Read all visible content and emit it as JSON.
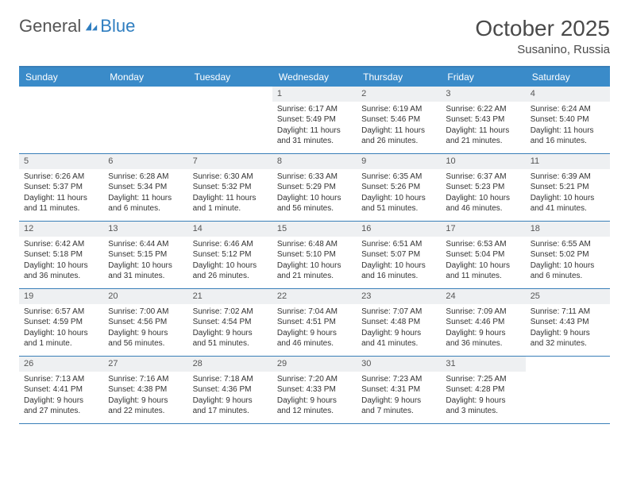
{
  "brand": {
    "word1": "General",
    "word2": "Blue",
    "color1": "#555555",
    "color2": "#2f7ec0",
    "mark_color": "#2f7ec0"
  },
  "title": "October 2025",
  "location": "Susanino, Russia",
  "palette": {
    "header_bg": "#3a8bc9",
    "header_text": "#ffffff",
    "rule": "#3a7fb8",
    "daynum_bg": "#eef0f2",
    "text": "#333333",
    "page_bg": "#ffffff"
  },
  "weekdays": [
    "Sunday",
    "Monday",
    "Tuesday",
    "Wednesday",
    "Thursday",
    "Friday",
    "Saturday"
  ],
  "weeks": [
    [
      {
        "empty": true
      },
      {
        "empty": true
      },
      {
        "empty": true
      },
      {
        "n": "1",
        "sunrise": "Sunrise: 6:17 AM",
        "sunset": "Sunset: 5:49 PM",
        "dl1": "Daylight: 11 hours",
        "dl2": "and 31 minutes."
      },
      {
        "n": "2",
        "sunrise": "Sunrise: 6:19 AM",
        "sunset": "Sunset: 5:46 PM",
        "dl1": "Daylight: 11 hours",
        "dl2": "and 26 minutes."
      },
      {
        "n": "3",
        "sunrise": "Sunrise: 6:22 AM",
        "sunset": "Sunset: 5:43 PM",
        "dl1": "Daylight: 11 hours",
        "dl2": "and 21 minutes."
      },
      {
        "n": "4",
        "sunrise": "Sunrise: 6:24 AM",
        "sunset": "Sunset: 5:40 PM",
        "dl1": "Daylight: 11 hours",
        "dl2": "and 16 minutes."
      }
    ],
    [
      {
        "n": "5",
        "sunrise": "Sunrise: 6:26 AM",
        "sunset": "Sunset: 5:37 PM",
        "dl1": "Daylight: 11 hours",
        "dl2": "and 11 minutes."
      },
      {
        "n": "6",
        "sunrise": "Sunrise: 6:28 AM",
        "sunset": "Sunset: 5:34 PM",
        "dl1": "Daylight: 11 hours",
        "dl2": "and 6 minutes."
      },
      {
        "n": "7",
        "sunrise": "Sunrise: 6:30 AM",
        "sunset": "Sunset: 5:32 PM",
        "dl1": "Daylight: 11 hours",
        "dl2": "and 1 minute."
      },
      {
        "n": "8",
        "sunrise": "Sunrise: 6:33 AM",
        "sunset": "Sunset: 5:29 PM",
        "dl1": "Daylight: 10 hours",
        "dl2": "and 56 minutes."
      },
      {
        "n": "9",
        "sunrise": "Sunrise: 6:35 AM",
        "sunset": "Sunset: 5:26 PM",
        "dl1": "Daylight: 10 hours",
        "dl2": "and 51 minutes."
      },
      {
        "n": "10",
        "sunrise": "Sunrise: 6:37 AM",
        "sunset": "Sunset: 5:23 PM",
        "dl1": "Daylight: 10 hours",
        "dl2": "and 46 minutes."
      },
      {
        "n": "11",
        "sunrise": "Sunrise: 6:39 AM",
        "sunset": "Sunset: 5:21 PM",
        "dl1": "Daylight: 10 hours",
        "dl2": "and 41 minutes."
      }
    ],
    [
      {
        "n": "12",
        "sunrise": "Sunrise: 6:42 AM",
        "sunset": "Sunset: 5:18 PM",
        "dl1": "Daylight: 10 hours",
        "dl2": "and 36 minutes."
      },
      {
        "n": "13",
        "sunrise": "Sunrise: 6:44 AM",
        "sunset": "Sunset: 5:15 PM",
        "dl1": "Daylight: 10 hours",
        "dl2": "and 31 minutes."
      },
      {
        "n": "14",
        "sunrise": "Sunrise: 6:46 AM",
        "sunset": "Sunset: 5:12 PM",
        "dl1": "Daylight: 10 hours",
        "dl2": "and 26 minutes."
      },
      {
        "n": "15",
        "sunrise": "Sunrise: 6:48 AM",
        "sunset": "Sunset: 5:10 PM",
        "dl1": "Daylight: 10 hours",
        "dl2": "and 21 minutes."
      },
      {
        "n": "16",
        "sunrise": "Sunrise: 6:51 AM",
        "sunset": "Sunset: 5:07 PM",
        "dl1": "Daylight: 10 hours",
        "dl2": "and 16 minutes."
      },
      {
        "n": "17",
        "sunrise": "Sunrise: 6:53 AM",
        "sunset": "Sunset: 5:04 PM",
        "dl1": "Daylight: 10 hours",
        "dl2": "and 11 minutes."
      },
      {
        "n": "18",
        "sunrise": "Sunrise: 6:55 AM",
        "sunset": "Sunset: 5:02 PM",
        "dl1": "Daylight: 10 hours",
        "dl2": "and 6 minutes."
      }
    ],
    [
      {
        "n": "19",
        "sunrise": "Sunrise: 6:57 AM",
        "sunset": "Sunset: 4:59 PM",
        "dl1": "Daylight: 10 hours",
        "dl2": "and 1 minute."
      },
      {
        "n": "20",
        "sunrise": "Sunrise: 7:00 AM",
        "sunset": "Sunset: 4:56 PM",
        "dl1": "Daylight: 9 hours",
        "dl2": "and 56 minutes."
      },
      {
        "n": "21",
        "sunrise": "Sunrise: 7:02 AM",
        "sunset": "Sunset: 4:54 PM",
        "dl1": "Daylight: 9 hours",
        "dl2": "and 51 minutes."
      },
      {
        "n": "22",
        "sunrise": "Sunrise: 7:04 AM",
        "sunset": "Sunset: 4:51 PM",
        "dl1": "Daylight: 9 hours",
        "dl2": "and 46 minutes."
      },
      {
        "n": "23",
        "sunrise": "Sunrise: 7:07 AM",
        "sunset": "Sunset: 4:48 PM",
        "dl1": "Daylight: 9 hours",
        "dl2": "and 41 minutes."
      },
      {
        "n": "24",
        "sunrise": "Sunrise: 7:09 AM",
        "sunset": "Sunset: 4:46 PM",
        "dl1": "Daylight: 9 hours",
        "dl2": "and 36 minutes."
      },
      {
        "n": "25",
        "sunrise": "Sunrise: 7:11 AM",
        "sunset": "Sunset: 4:43 PM",
        "dl1": "Daylight: 9 hours",
        "dl2": "and 32 minutes."
      }
    ],
    [
      {
        "n": "26",
        "sunrise": "Sunrise: 7:13 AM",
        "sunset": "Sunset: 4:41 PM",
        "dl1": "Daylight: 9 hours",
        "dl2": "and 27 minutes."
      },
      {
        "n": "27",
        "sunrise": "Sunrise: 7:16 AM",
        "sunset": "Sunset: 4:38 PM",
        "dl1": "Daylight: 9 hours",
        "dl2": "and 22 minutes."
      },
      {
        "n": "28",
        "sunrise": "Sunrise: 7:18 AM",
        "sunset": "Sunset: 4:36 PM",
        "dl1": "Daylight: 9 hours",
        "dl2": "and 17 minutes."
      },
      {
        "n": "29",
        "sunrise": "Sunrise: 7:20 AM",
        "sunset": "Sunset: 4:33 PM",
        "dl1": "Daylight: 9 hours",
        "dl2": "and 12 minutes."
      },
      {
        "n": "30",
        "sunrise": "Sunrise: 7:23 AM",
        "sunset": "Sunset: 4:31 PM",
        "dl1": "Daylight: 9 hours",
        "dl2": "and 7 minutes."
      },
      {
        "n": "31",
        "sunrise": "Sunrise: 7:25 AM",
        "sunset": "Sunset: 4:28 PM",
        "dl1": "Daylight: 9 hours",
        "dl2": "and 3 minutes."
      },
      {
        "empty": true
      }
    ]
  ]
}
